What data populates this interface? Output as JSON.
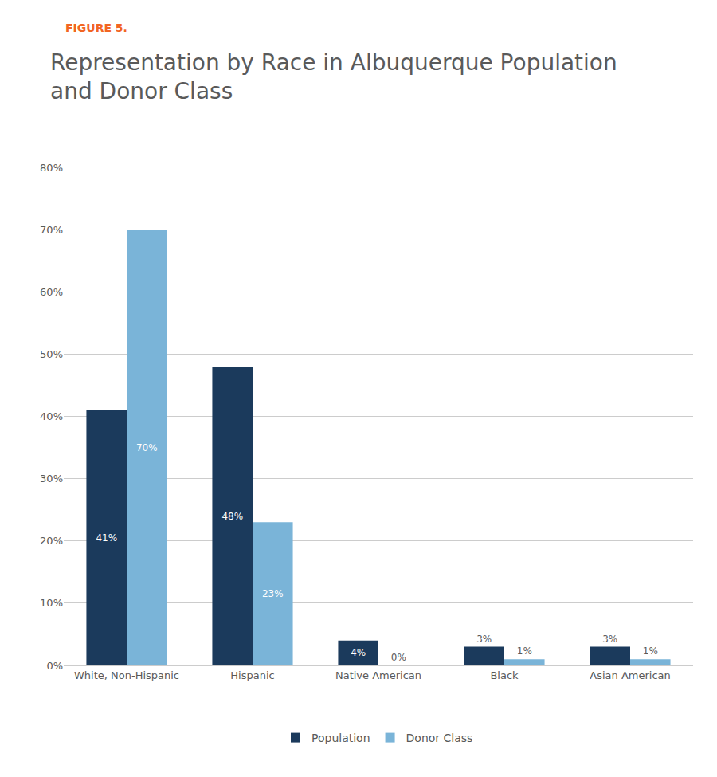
{
  "chart_data": {
    "type": "bar",
    "title": "Representation by Race in Albuquerque Population\nand Donor Class",
    "annotations": [
      {
        "text": "FIGURE 5.",
        "color": "#f26522"
      }
    ],
    "categories": [
      "White, Non-Hispanic",
      "Hispanic",
      "Native American",
      "Black",
      "Asian American"
    ],
    "series": [
      {
        "name": "Population",
        "color": "#1b3a5c",
        "values": [
          41,
          48,
          4,
          3,
          3
        ],
        "value_labels": [
          "41%",
          "48%",
          "4%",
          "3%",
          "3%"
        ]
      },
      {
        "name": "Donor Class",
        "color": "#7ab4d8",
        "values": [
          70,
          23,
          0,
          1,
          1
        ],
        "value_labels": [
          "70%",
          "23%",
          "0%",
          "1%",
          "1%"
        ]
      }
    ],
    "ylim": [
      0,
      80
    ],
    "yticks": [
      {
        "value": 0,
        "label": "0%"
      },
      {
        "value": 10,
        "label": "10%"
      },
      {
        "value": 20,
        "label": "20%"
      },
      {
        "value": 30,
        "label": "30%"
      },
      {
        "value": 40,
        "label": "40%"
      },
      {
        "value": 50,
        "label": "50%"
      },
      {
        "value": 60,
        "label": "60%"
      },
      {
        "value": 70,
        "label": "70%"
      },
      {
        "value": 80,
        "label": "80%"
      }
    ],
    "grid": true,
    "legend": "bottom",
    "data_labels": true
  }
}
